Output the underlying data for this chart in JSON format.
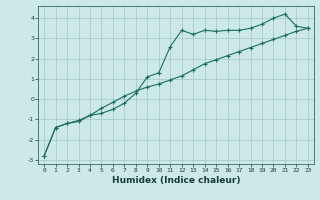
{
  "xlabel": "Humidex (Indice chaleur)",
  "ylabel": "",
  "bg_color": "#cce8e8",
  "grid_color": "#aacccc",
  "line_color": "#1a6e60",
  "xlim": [
    -0.5,
    23.5
  ],
  "ylim": [
    -3.2,
    4.6
  ],
  "yticks": [
    -3,
    -2,
    -1,
    0,
    1,
    2,
    3,
    4
  ],
  "xticks": [
    0,
    1,
    2,
    3,
    4,
    5,
    6,
    7,
    8,
    9,
    10,
    11,
    12,
    13,
    14,
    15,
    16,
    17,
    18,
    19,
    20,
    21,
    22,
    23
  ],
  "line1_x": [
    0,
    1,
    2,
    3,
    4,
    5,
    6,
    7,
    8,
    9,
    10,
    11,
    12,
    13,
    14,
    15,
    16,
    17,
    18,
    19,
    20,
    21,
    22,
    23
  ],
  "line1_y": [
    -2.8,
    -1.4,
    -1.2,
    -1.1,
    -0.8,
    -0.7,
    -0.5,
    -0.2,
    0.3,
    1.1,
    1.3,
    2.6,
    3.4,
    3.2,
    3.4,
    3.35,
    3.4,
    3.4,
    3.5,
    3.7,
    4.0,
    4.2,
    3.6,
    3.5
  ],
  "line2_x": [
    0,
    1,
    2,
    3,
    4,
    5,
    6,
    7,
    8,
    9,
    10,
    11,
    12,
    13,
    14,
    15,
    16,
    17,
    18,
    19,
    20,
    21,
    22,
    23
  ],
  "line2_y": [
    -2.8,
    -1.4,
    -1.2,
    -1.05,
    -0.8,
    -0.45,
    -0.15,
    0.15,
    0.4,
    0.6,
    0.75,
    0.95,
    1.15,
    1.45,
    1.75,
    1.95,
    2.15,
    2.35,
    2.55,
    2.75,
    2.95,
    3.15,
    3.35,
    3.5
  ]
}
